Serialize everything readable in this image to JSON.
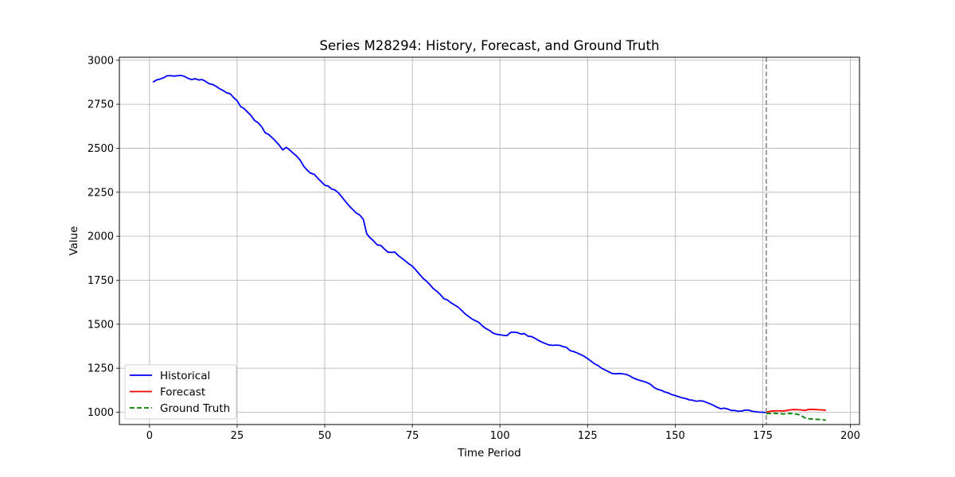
{
  "chart_data": {
    "type": "line",
    "title": "Series M28294: History, Forecast, and Ground Truth",
    "xlabel": "Time Period",
    "ylabel": "Value",
    "xlim": [
      -8.6,
      202.6
    ],
    "ylim": [
      930,
      3017
    ],
    "xticks": [
      0,
      25,
      50,
      75,
      100,
      125,
      150,
      175,
      200
    ],
    "yticks": [
      1000,
      1250,
      1500,
      1750,
      2000,
      2250,
      2500,
      2750,
      3000
    ],
    "grid": true,
    "legend_position": "lower-left",
    "forecast_start": 176,
    "series": [
      {
        "name": "Historical",
        "color": "#0000ff",
        "style": "solid",
        "points": [
          [
            1,
            2875
          ],
          [
            2,
            2888
          ],
          [
            3,
            2893
          ],
          [
            4,
            2900
          ],
          [
            5,
            2912
          ],
          [
            6,
            2912
          ],
          [
            7,
            2910
          ],
          [
            8,
            2912
          ],
          [
            9,
            2914
          ],
          [
            10,
            2908
          ],
          [
            11,
            2897
          ],
          [
            12,
            2890
          ],
          [
            13,
            2895
          ],
          [
            14,
            2888
          ],
          [
            15,
            2890
          ],
          [
            16,
            2880
          ],
          [
            17,
            2867
          ],
          [
            18,
            2862
          ],
          [
            19,
            2852
          ],
          [
            20,
            2838
          ],
          [
            21,
            2828
          ],
          [
            22,
            2815
          ],
          [
            23,
            2810
          ],
          [
            24,
            2788
          ],
          [
            25,
            2770
          ],
          [
            26,
            2737
          ],
          [
            27,
            2725
          ],
          [
            28,
            2705
          ],
          [
            29,
            2685
          ],
          [
            30,
            2657
          ],
          [
            31,
            2645
          ],
          [
            32,
            2622
          ],
          [
            33,
            2588
          ],
          [
            34,
            2578
          ],
          [
            35,
            2560
          ],
          [
            36,
            2540
          ],
          [
            37,
            2518
          ],
          [
            38,
            2490
          ],
          [
            39,
            2505
          ],
          [
            40,
            2490
          ],
          [
            41,
            2472
          ],
          [
            42,
            2455
          ],
          [
            43,
            2432
          ],
          [
            44,
            2398
          ],
          [
            45,
            2375
          ],
          [
            46,
            2358
          ],
          [
            47,
            2352
          ],
          [
            48,
            2330
          ],
          [
            49,
            2310
          ],
          [
            50,
            2290
          ],
          [
            51,
            2285
          ],
          [
            52,
            2268
          ],
          [
            53,
            2262
          ],
          [
            54,
            2245
          ],
          [
            55,
            2220
          ],
          [
            56,
            2195
          ],
          [
            57,
            2172
          ],
          [
            58,
            2152
          ],
          [
            59,
            2132
          ],
          [
            60,
            2120
          ],
          [
            61,
            2097
          ],
          [
            62,
            2013
          ],
          [
            63,
            1990
          ],
          [
            64,
            1972
          ],
          [
            65,
            1950
          ],
          [
            66,
            1948
          ],
          [
            67,
            1928
          ],
          [
            68,
            1910
          ],
          [
            69,
            1908
          ],
          [
            70,
            1910
          ],
          [
            71,
            1890
          ],
          [
            72,
            1875
          ],
          [
            73,
            1860
          ],
          [
            74,
            1843
          ],
          [
            75,
            1830
          ],
          [
            76,
            1808
          ],
          [
            77,
            1785
          ],
          [
            78,
            1762
          ],
          [
            79,
            1745
          ],
          [
            80,
            1725
          ],
          [
            81,
            1702
          ],
          [
            82,
            1687
          ],
          [
            83,
            1668
          ],
          [
            84,
            1645
          ],
          [
            85,
            1638
          ],
          [
            86,
            1622
          ],
          [
            87,
            1610
          ],
          [
            88,
            1598
          ],
          [
            89,
            1580
          ],
          [
            90,
            1560
          ],
          [
            91,
            1545
          ],
          [
            92,
            1530
          ],
          [
            93,
            1520
          ],
          [
            94,
            1510
          ],
          [
            95,
            1490
          ],
          [
            96,
            1475
          ],
          [
            97,
            1465
          ],
          [
            98,
            1450
          ],
          [
            99,
            1443
          ],
          [
            100,
            1440
          ],
          [
            101,
            1437
          ],
          [
            102,
            1435
          ],
          [
            103,
            1453
          ],
          [
            104,
            1455
          ],
          [
            105,
            1452
          ],
          [
            106,
            1444
          ],
          [
            107,
            1447
          ],
          [
            108,
            1432
          ],
          [
            109,
            1430
          ],
          [
            110,
            1420
          ],
          [
            111,
            1408
          ],
          [
            112,
            1398
          ],
          [
            113,
            1390
          ],
          [
            114,
            1382
          ],
          [
            115,
            1380
          ],
          [
            116,
            1381
          ],
          [
            117,
            1380
          ],
          [
            118,
            1373
          ],
          [
            119,
            1368
          ],
          [
            120,
            1350
          ],
          [
            121,
            1345
          ],
          [
            122,
            1337
          ],
          [
            123,
            1328
          ],
          [
            124,
            1318
          ],
          [
            125,
            1305
          ],
          [
            126,
            1290
          ],
          [
            127,
            1275
          ],
          [
            128,
            1265
          ],
          [
            129,
            1250
          ],
          [
            130,
            1240
          ],
          [
            131,
            1230
          ],
          [
            132,
            1220
          ],
          [
            133,
            1218
          ],
          [
            134,
            1220
          ],
          [
            135,
            1218
          ],
          [
            136,
            1215
          ],
          [
            137,
            1207
          ],
          [
            138,
            1195
          ],
          [
            139,
            1187
          ],
          [
            140,
            1180
          ],
          [
            141,
            1175
          ],
          [
            142,
            1168
          ],
          [
            143,
            1158
          ],
          [
            144,
            1140
          ],
          [
            145,
            1130
          ],
          [
            146,
            1125
          ],
          [
            147,
            1115
          ],
          [
            148,
            1110
          ],
          [
            149,
            1100
          ],
          [
            150,
            1095
          ],
          [
            151,
            1088
          ],
          [
            152,
            1082
          ],
          [
            153,
            1078
          ],
          [
            154,
            1070
          ],
          [
            155,
            1068
          ],
          [
            156,
            1062
          ],
          [
            157,
            1065
          ],
          [
            158,
            1063
          ],
          [
            159,
            1055
          ],
          [
            160,
            1048
          ],
          [
            161,
            1038
          ],
          [
            162,
            1028
          ],
          [
            163,
            1020
          ],
          [
            164,
            1023
          ],
          [
            165,
            1018
          ],
          [
            166,
            1010
          ],
          [
            167,
            1010
          ],
          [
            168,
            1005
          ],
          [
            169,
            1007
          ],
          [
            170,
            1012
          ],
          [
            171,
            1012
          ],
          [
            172,
            1005
          ],
          [
            173,
            1003
          ],
          [
            174,
            1000
          ],
          [
            175,
            1000
          ],
          [
            176,
            998
          ]
        ]
      },
      {
        "name": "Forecast",
        "color": "#ff0000",
        "style": "solid",
        "points": [
          [
            176,
            1000
          ],
          [
            177,
            1005
          ],
          [
            178,
            1007
          ],
          [
            179,
            1008
          ],
          [
            180,
            1008
          ],
          [
            181,
            1007
          ],
          [
            182,
            1010
          ],
          [
            183,
            1014
          ],
          [
            184,
            1015
          ],
          [
            185,
            1014
          ],
          [
            186,
            1013
          ],
          [
            187,
            1010
          ],
          [
            188,
            1015
          ],
          [
            189,
            1016
          ],
          [
            190,
            1015
          ],
          [
            191,
            1014
          ],
          [
            192,
            1013
          ],
          [
            193,
            1011
          ]
        ]
      },
      {
        "name": "Ground Truth",
        "color": "#008000",
        "style": "dashed",
        "points": [
          [
            176,
            993
          ],
          [
            177,
            993
          ],
          [
            178,
            994
          ],
          [
            179,
            993
          ],
          [
            180,
            992
          ],
          [
            181,
            990
          ],
          [
            182,
            992
          ],
          [
            183,
            993
          ],
          [
            184,
            990
          ],
          [
            185,
            988
          ],
          [
            186,
            980
          ],
          [
            187,
            968
          ],
          [
            188,
            963
          ],
          [
            189,
            962
          ],
          [
            190,
            960
          ],
          [
            191,
            959
          ],
          [
            192,
            957
          ],
          [
            193,
            955
          ]
        ]
      }
    ]
  }
}
